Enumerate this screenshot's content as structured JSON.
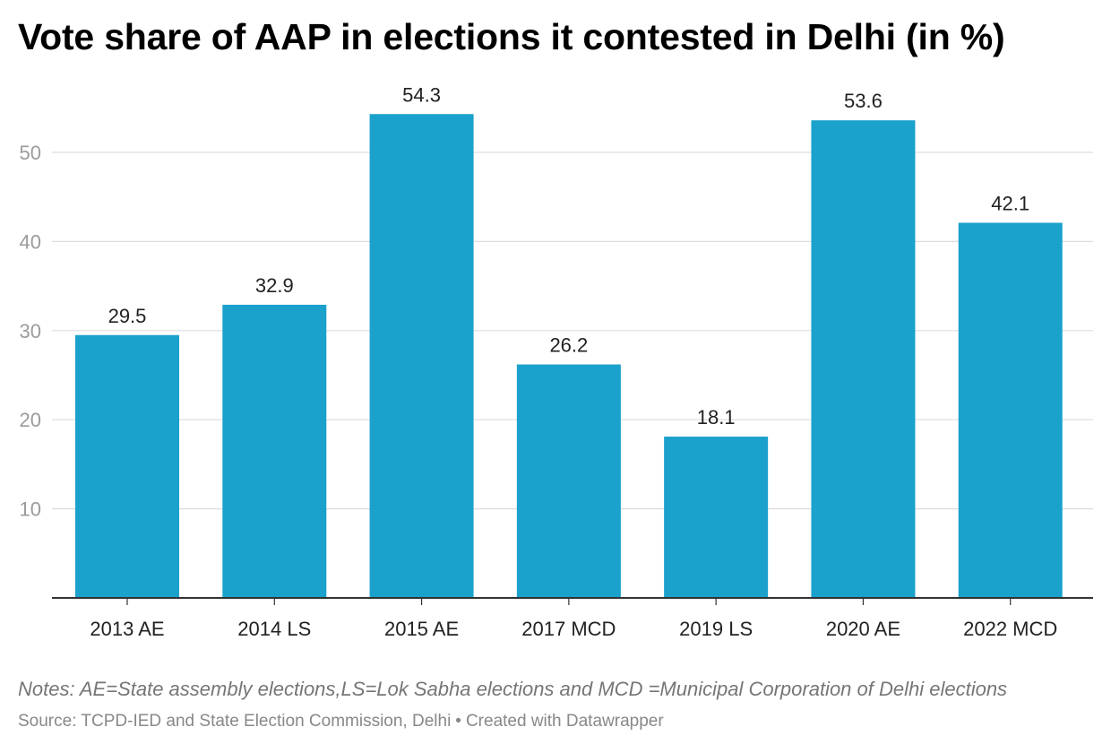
{
  "title": "Vote share of AAP in elections it contested in Delhi (in %)",
  "notes": "Notes: AE=State assembly elections,LS=Lok Sabha elections and MCD =Municipal Corporation of Delhi elections",
  "source": {
    "label": "Source: TCPD-IED and State Election Commission, Delhi",
    "separator": "•",
    "credit": "Created with Datawrapper"
  },
  "colors": {
    "bar": "#1aa1cc",
    "grid": "#dddddd",
    "axis": "#333333",
    "tick_label": "#9b9b9b",
    "category_label": "#222222",
    "value_label": "#222222"
  },
  "chart_data": {
    "type": "bar",
    "title": "Vote share of AAP in elections it contested in Delhi (in %)",
    "categories": [
      "2013 AE",
      "2014 LS",
      "2015 AE",
      "2017 MCD",
      "2019 LS",
      "2020 AE",
      "2022 MCD"
    ],
    "values": [
      29.5,
      32.9,
      54.3,
      26.2,
      18.1,
      53.6,
      42.1
    ],
    "value_labels": [
      "29.5",
      "32.9",
      "54.3",
      "26.2",
      "18.1",
      "53.6",
      "42.1"
    ],
    "xlabel": "",
    "ylabel": "",
    "ylim": [
      0,
      60
    ],
    "yticks": [
      10,
      20,
      30,
      40,
      50
    ],
    "ytick_labels": [
      "10",
      "20",
      "30",
      "40",
      "50"
    ],
    "grid": true,
    "legend": "none"
  }
}
